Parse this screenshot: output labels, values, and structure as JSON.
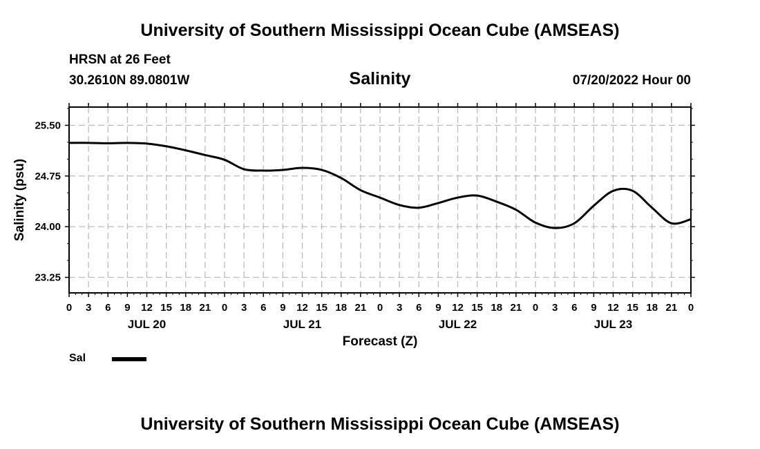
{
  "header": {
    "top_title": "University of Southern Mississippi Ocean Cube (AMSEAS)",
    "station": "HRSN at 26 Feet",
    "coords": "30.2610N  89.0801W",
    "chart_title": "Salinity",
    "datetime": "07/20/2022 Hour 00"
  },
  "footer": {
    "bottom_title": "University of Southern Mississippi Ocean Cube (AMSEAS)"
  },
  "legend": {
    "label": "Sal"
  },
  "colors": {
    "line": "#000000",
    "grid": "#bbbbbb"
  },
  "chart_data": {
    "type": "line",
    "title": "Salinity",
    "xlabel": "Forecast (Z)",
    "ylabel": "Salinity (psu)",
    "xlim": [
      0,
      96
    ],
    "ylim": [
      23.02,
      25.77
    ],
    "yticks": [
      23.25,
      24.0,
      24.75,
      25.5
    ],
    "ytick_labels": [
      "23.25",
      "24.00",
      "24.75",
      "25.50"
    ],
    "xtick_hours": [
      0,
      3,
      6,
      9,
      12,
      15,
      18,
      21,
      24,
      27,
      30,
      33,
      36,
      39,
      42,
      45,
      48,
      51,
      54,
      57,
      60,
      63,
      66,
      69,
      72,
      75,
      78,
      81,
      84,
      87,
      90,
      93,
      96
    ],
    "xtick_labels": [
      "0",
      "3",
      "6",
      "9",
      "12",
      "15",
      "18",
      "21",
      "0",
      "3",
      "6",
      "9",
      "12",
      "15",
      "18",
      "21",
      "0",
      "3",
      "6",
      "9",
      "12",
      "15",
      "18",
      "21",
      "0",
      "3",
      "6",
      "9",
      "12",
      "15",
      "18",
      "21",
      "0"
    ],
    "day_labels": [
      {
        "label": "JUL 20",
        "hour": 12
      },
      {
        "label": "JUL 21",
        "hour": 36
      },
      {
        "label": "JUL 22",
        "hour": 60
      },
      {
        "label": "JUL 23",
        "hour": 84
      }
    ],
    "grid": true,
    "series": [
      {
        "name": "Sal",
        "x": [
          0,
          3,
          6,
          9,
          12,
          15,
          18,
          21,
          24,
          27,
          30,
          33,
          36,
          39,
          42,
          45,
          48,
          51,
          54,
          57,
          60,
          63,
          66,
          69,
          72,
          75,
          78,
          81,
          84,
          87,
          90,
          93,
          96
        ],
        "values": [
          25.24,
          25.24,
          25.235,
          25.24,
          25.23,
          25.19,
          25.13,
          25.06,
          24.99,
          24.85,
          24.83,
          24.84,
          24.87,
          24.84,
          24.72,
          24.54,
          24.43,
          24.32,
          24.28,
          24.35,
          24.43,
          24.46,
          24.37,
          24.25,
          24.06,
          23.98,
          24.05,
          24.31,
          24.53,
          24.53,
          24.28,
          24.05,
          24.11
        ]
      }
    ]
  }
}
